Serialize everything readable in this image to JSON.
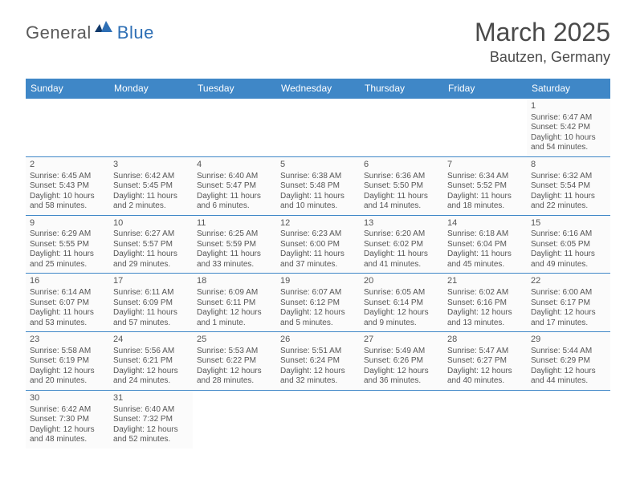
{
  "logo": {
    "part1": "General",
    "part2": "Blue"
  },
  "title": "March 2025",
  "location": "Bautzen, Germany",
  "colors": {
    "header_bg": "#3f87c7",
    "header_text": "#ffffff",
    "cell_border": "#3f87c7",
    "cell_bg": "#fbfbfb",
    "text": "#555555"
  },
  "weekdays": [
    "Sunday",
    "Monday",
    "Tuesday",
    "Wednesday",
    "Thursday",
    "Friday",
    "Saturday"
  ],
  "weeks": [
    [
      null,
      null,
      null,
      null,
      null,
      null,
      {
        "d": "1",
        "sr": "Sunrise: 6:47 AM",
        "ss": "Sunset: 5:42 PM",
        "dl1": "Daylight: 10 hours",
        "dl2": "and 54 minutes."
      }
    ],
    [
      {
        "d": "2",
        "sr": "Sunrise: 6:45 AM",
        "ss": "Sunset: 5:43 PM",
        "dl1": "Daylight: 10 hours",
        "dl2": "and 58 minutes."
      },
      {
        "d": "3",
        "sr": "Sunrise: 6:42 AM",
        "ss": "Sunset: 5:45 PM",
        "dl1": "Daylight: 11 hours",
        "dl2": "and 2 minutes."
      },
      {
        "d": "4",
        "sr": "Sunrise: 6:40 AM",
        "ss": "Sunset: 5:47 PM",
        "dl1": "Daylight: 11 hours",
        "dl2": "and 6 minutes."
      },
      {
        "d": "5",
        "sr": "Sunrise: 6:38 AM",
        "ss": "Sunset: 5:48 PM",
        "dl1": "Daylight: 11 hours",
        "dl2": "and 10 minutes."
      },
      {
        "d": "6",
        "sr": "Sunrise: 6:36 AM",
        "ss": "Sunset: 5:50 PM",
        "dl1": "Daylight: 11 hours",
        "dl2": "and 14 minutes."
      },
      {
        "d": "7",
        "sr": "Sunrise: 6:34 AM",
        "ss": "Sunset: 5:52 PM",
        "dl1": "Daylight: 11 hours",
        "dl2": "and 18 minutes."
      },
      {
        "d": "8",
        "sr": "Sunrise: 6:32 AM",
        "ss": "Sunset: 5:54 PM",
        "dl1": "Daylight: 11 hours",
        "dl2": "and 22 minutes."
      }
    ],
    [
      {
        "d": "9",
        "sr": "Sunrise: 6:29 AM",
        "ss": "Sunset: 5:55 PM",
        "dl1": "Daylight: 11 hours",
        "dl2": "and 25 minutes."
      },
      {
        "d": "10",
        "sr": "Sunrise: 6:27 AM",
        "ss": "Sunset: 5:57 PM",
        "dl1": "Daylight: 11 hours",
        "dl2": "and 29 minutes."
      },
      {
        "d": "11",
        "sr": "Sunrise: 6:25 AM",
        "ss": "Sunset: 5:59 PM",
        "dl1": "Daylight: 11 hours",
        "dl2": "and 33 minutes."
      },
      {
        "d": "12",
        "sr": "Sunrise: 6:23 AM",
        "ss": "Sunset: 6:00 PM",
        "dl1": "Daylight: 11 hours",
        "dl2": "and 37 minutes."
      },
      {
        "d": "13",
        "sr": "Sunrise: 6:20 AM",
        "ss": "Sunset: 6:02 PM",
        "dl1": "Daylight: 11 hours",
        "dl2": "and 41 minutes."
      },
      {
        "d": "14",
        "sr": "Sunrise: 6:18 AM",
        "ss": "Sunset: 6:04 PM",
        "dl1": "Daylight: 11 hours",
        "dl2": "and 45 minutes."
      },
      {
        "d": "15",
        "sr": "Sunrise: 6:16 AM",
        "ss": "Sunset: 6:05 PM",
        "dl1": "Daylight: 11 hours",
        "dl2": "and 49 minutes."
      }
    ],
    [
      {
        "d": "16",
        "sr": "Sunrise: 6:14 AM",
        "ss": "Sunset: 6:07 PM",
        "dl1": "Daylight: 11 hours",
        "dl2": "and 53 minutes."
      },
      {
        "d": "17",
        "sr": "Sunrise: 6:11 AM",
        "ss": "Sunset: 6:09 PM",
        "dl1": "Daylight: 11 hours",
        "dl2": "and 57 minutes."
      },
      {
        "d": "18",
        "sr": "Sunrise: 6:09 AM",
        "ss": "Sunset: 6:11 PM",
        "dl1": "Daylight: 12 hours",
        "dl2": "and 1 minute."
      },
      {
        "d": "19",
        "sr": "Sunrise: 6:07 AM",
        "ss": "Sunset: 6:12 PM",
        "dl1": "Daylight: 12 hours",
        "dl2": "and 5 minutes."
      },
      {
        "d": "20",
        "sr": "Sunrise: 6:05 AM",
        "ss": "Sunset: 6:14 PM",
        "dl1": "Daylight: 12 hours",
        "dl2": "and 9 minutes."
      },
      {
        "d": "21",
        "sr": "Sunrise: 6:02 AM",
        "ss": "Sunset: 6:16 PM",
        "dl1": "Daylight: 12 hours",
        "dl2": "and 13 minutes."
      },
      {
        "d": "22",
        "sr": "Sunrise: 6:00 AM",
        "ss": "Sunset: 6:17 PM",
        "dl1": "Daylight: 12 hours",
        "dl2": "and 17 minutes."
      }
    ],
    [
      {
        "d": "23",
        "sr": "Sunrise: 5:58 AM",
        "ss": "Sunset: 6:19 PM",
        "dl1": "Daylight: 12 hours",
        "dl2": "and 20 minutes."
      },
      {
        "d": "24",
        "sr": "Sunrise: 5:56 AM",
        "ss": "Sunset: 6:21 PM",
        "dl1": "Daylight: 12 hours",
        "dl2": "and 24 minutes."
      },
      {
        "d": "25",
        "sr": "Sunrise: 5:53 AM",
        "ss": "Sunset: 6:22 PM",
        "dl1": "Daylight: 12 hours",
        "dl2": "and 28 minutes."
      },
      {
        "d": "26",
        "sr": "Sunrise: 5:51 AM",
        "ss": "Sunset: 6:24 PM",
        "dl1": "Daylight: 12 hours",
        "dl2": "and 32 minutes."
      },
      {
        "d": "27",
        "sr": "Sunrise: 5:49 AM",
        "ss": "Sunset: 6:26 PM",
        "dl1": "Daylight: 12 hours",
        "dl2": "and 36 minutes."
      },
      {
        "d": "28",
        "sr": "Sunrise: 5:47 AM",
        "ss": "Sunset: 6:27 PM",
        "dl1": "Daylight: 12 hours",
        "dl2": "and 40 minutes."
      },
      {
        "d": "29",
        "sr": "Sunrise: 5:44 AM",
        "ss": "Sunset: 6:29 PM",
        "dl1": "Daylight: 12 hours",
        "dl2": "and 44 minutes."
      }
    ],
    [
      {
        "d": "30",
        "sr": "Sunrise: 6:42 AM",
        "ss": "Sunset: 7:30 PM",
        "dl1": "Daylight: 12 hours",
        "dl2": "and 48 minutes."
      },
      {
        "d": "31",
        "sr": "Sunrise: 6:40 AM",
        "ss": "Sunset: 7:32 PM",
        "dl1": "Daylight: 12 hours",
        "dl2": "and 52 minutes."
      },
      null,
      null,
      null,
      null,
      null
    ]
  ]
}
